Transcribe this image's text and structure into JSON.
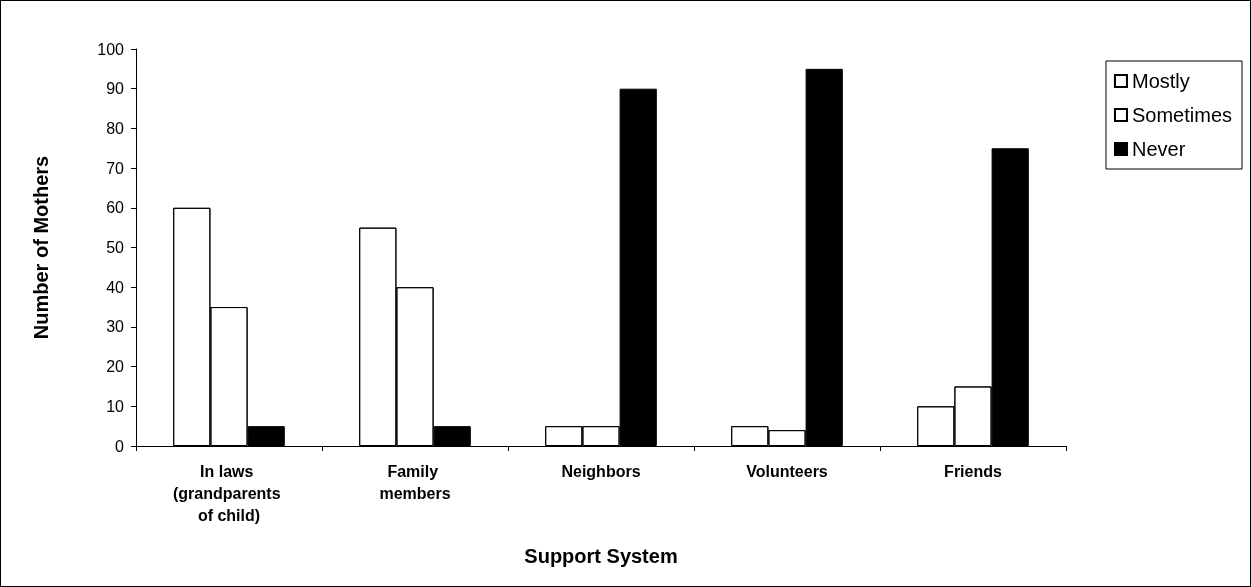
{
  "chart_data": {
    "type": "bar",
    "xlabel": "Support System",
    "ylabel": "Number of Mothers",
    "categories": [
      "In laws (grandparents of child)",
      "Family members",
      "Neighbors",
      "Volunteers",
      "Friends"
    ],
    "series": [
      {
        "name": "Mostly",
        "color": "#ffffff",
        "values": [
          60,
          55,
          5,
          5,
          10
        ]
      },
      {
        "name": "Sometimes",
        "color": "#ffffff",
        "values": [
          35,
          40,
          5,
          4,
          15
        ]
      },
      {
        "name": "Never",
        "color": "#000000",
        "values": [
          5,
          5,
          90,
          95,
          75
        ]
      }
    ],
    "ylim": [
      0,
      100
    ],
    "yticks": [
      0,
      10,
      20,
      30,
      40,
      50,
      60,
      70,
      80,
      90,
      100
    ],
    "grid": false,
    "legend": "right"
  }
}
